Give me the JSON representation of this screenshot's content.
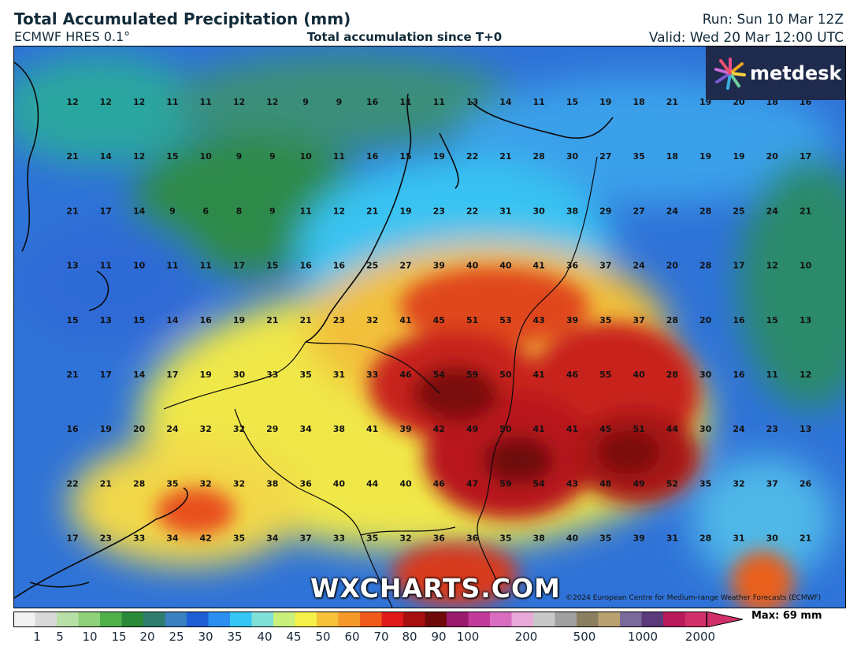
{
  "header": {
    "title": "Total Accumulated Precipitation (mm)",
    "model": "ECMWF HRES 0.1°",
    "subtitle": "Total accumulation since T+0",
    "run": "Run: Sun 10 Mar 12Z",
    "valid": "Valid: Wed 20 Mar 12:00 UTC"
  },
  "logo": {
    "text": "metdesk",
    "icon": "flower-burst-icon"
  },
  "watermark": "WXCHARTS.COM",
  "copyright": "©2024 European Centre for Medium-range Weather Forecasts (ECMWF)",
  "max_label": "Max: 69 mm",
  "colorbar": {
    "ticks": [
      "1",
      "5",
      "10",
      "15",
      "20",
      "25",
      "30",
      "35",
      "40",
      "45",
      "50",
      "60",
      "70",
      "80",
      "90",
      "100",
      "200",
      "500",
      "1000",
      "2000"
    ],
    "colors": [
      "#f2f2f2",
      "#d9d9d9",
      "#b7e0a6",
      "#8fd07a",
      "#4fb04a",
      "#2a8a3a",
      "#2e7d6e",
      "#3a7fc0",
      "#1f5fd6",
      "#2b8ff0",
      "#36c6f5",
      "#7fe0d8",
      "#c8f07a",
      "#f5f04a",
      "#f5c23a",
      "#f59a2a",
      "#f05a1a",
      "#e01a1a",
      "#a80f0f",
      "#6e0a0a",
      "#9a1a6e",
      "#c23a9a",
      "#d96ec0",
      "#e8a8d8",
      "#c8c8c8",
      "#a0a0a0",
      "#8a8060",
      "#b8a070",
      "#7a6a9a",
      "#5a3a7a",
      "#b81a5a",
      "#d0306a"
    ]
  },
  "map": {
    "grid_values": [
      [
        "12",
        "12",
        "12",
        "11",
        "11",
        "12",
        "12",
        "9",
        "9",
        "16",
        "11",
        "11",
        "13",
        "14",
        "11",
        "15",
        "19",
        "18",
        "21",
        "19",
        "20",
        "18",
        "16"
      ],
      [
        "21",
        "14",
        "12",
        "15",
        "10",
        "9",
        "9",
        "10",
        "11",
        "16",
        "15",
        "19",
        "22",
        "21",
        "28",
        "30",
        "27",
        "35",
        "18",
        "19",
        "19",
        "20",
        "17"
      ],
      [
        "21",
        "17",
        "14",
        "9",
        "6",
        "8",
        "9",
        "11",
        "12",
        "21",
        "19",
        "23",
        "22",
        "31",
        "30",
        "38",
        "29",
        "27",
        "24",
        "28",
        "25",
        "24",
        "21"
      ],
      [
        "13",
        "11",
        "10",
        "11",
        "11",
        "17",
        "15",
        "16",
        "16",
        "25",
        "27",
        "39",
        "40",
        "40",
        "41",
        "36",
        "37",
        "24",
        "20",
        "28",
        "17",
        "12",
        "10"
      ],
      [
        "15",
        "13",
        "15",
        "14",
        "16",
        "19",
        "21",
        "21",
        "23",
        "32",
        "41",
        "45",
        "51",
        "53",
        "43",
        "39",
        "35",
        "37",
        "28",
        "20",
        "16",
        "15",
        "13"
      ],
      [
        "21",
        "17",
        "14",
        "17",
        "19",
        "30",
        "33",
        "35",
        "31",
        "33",
        "46",
        "54",
        "59",
        "50",
        "41",
        "46",
        "55",
        "40",
        "28",
        "30",
        "16",
        "11",
        "12"
      ],
      [
        "16",
        "19",
        "20",
        "24",
        "32",
        "32",
        "29",
        "34",
        "38",
        "41",
        "39",
        "42",
        "49",
        "50",
        "41",
        "41",
        "45",
        "51",
        "44",
        "30",
        "24",
        "23",
        "13"
      ],
      [
        "22",
        "21",
        "28",
        "35",
        "32",
        "32",
        "38",
        "36",
        "40",
        "44",
        "40",
        "46",
        "47",
        "59",
        "54",
        "43",
        "48",
        "49",
        "52",
        "35",
        "32",
        "37",
        "26"
      ],
      [
        "17",
        "23",
        "33",
        "34",
        "42",
        "35",
        "34",
        "37",
        "33",
        "35",
        "32",
        "36",
        "36",
        "35",
        "38",
        "40",
        "35",
        "39",
        "31",
        "28",
        "31",
        "30",
        "21"
      ]
    ]
  }
}
